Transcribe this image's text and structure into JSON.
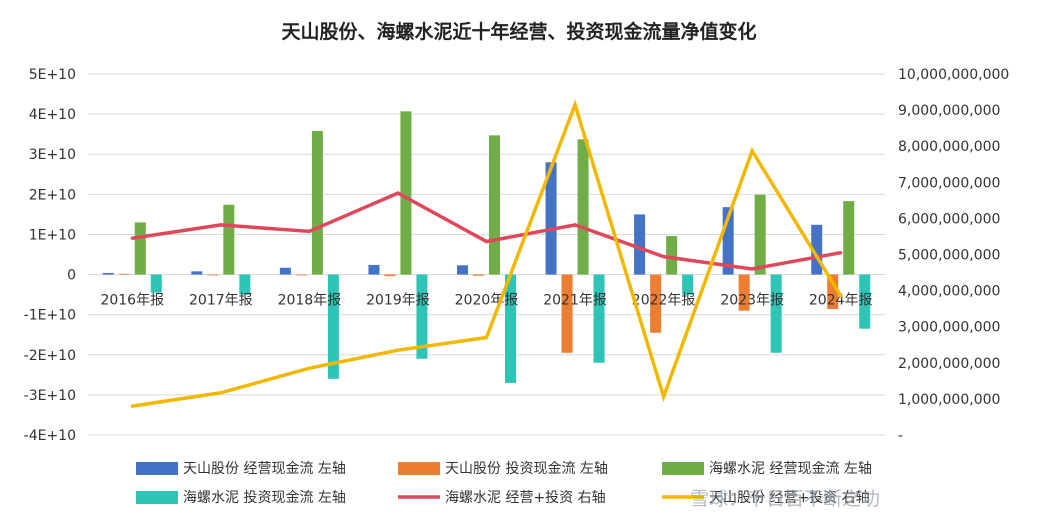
{
  "watermark": "雪球：千日百不断之功",
  "chart_data": {
    "type": "bar",
    "title": "天山股份、海螺水泥近十年经营、投资现金流量净值变化",
    "categories": [
      "2016年报",
      "2017年报",
      "2018年报",
      "2019年报",
      "2020年报",
      "2021年报",
      "2022年报",
      "2023年报",
      "2024年报"
    ],
    "left_axis": {
      "min": -40000000000,
      "max": 50000000000,
      "step": 10000000000,
      "tick_labels": [
        "-4E+10",
        "-3E+10",
        "-2E+10",
        "-1E+10",
        "0",
        "1E+10",
        "2E+10",
        "3E+10",
        "4E+10",
        "5E+10"
      ]
    },
    "right_axis": {
      "min": 0,
      "max": 10000000000,
      "step": 1000000000,
      "tick_labels": [
        "-",
        "1,000,000,000",
        "2,000,000,000",
        "3,000,000,000",
        "4,000,000,000",
        "5,000,000,000",
        "6,000,000,000",
        "7,000,000,000",
        "8,000,000,000",
        "9,000,000,000",
        "10,000,000,000"
      ]
    },
    "grid": true,
    "legend_position": "bottom",
    "series": [
      {
        "name": "天山股份 经营现金流 左轴",
        "kind": "bar",
        "axis": "left",
        "color": "#4472c4",
        "values": [
          400000000,
          800000000,
          1700000000,
          2400000000,
          2300000000,
          28000000000,
          15000000000,
          16800000000,
          12400000000
        ]
      },
      {
        "name": "天山股份 投资现金流 左轴",
        "kind": "bar",
        "axis": "left",
        "color": "#ed7d31",
        "values": [
          200000000,
          -100000000,
          -200000000,
          -400000000,
          -300000000,
          -19500000000,
          -14500000000,
          -9000000000,
          -8600000000
        ]
      },
      {
        "name": "海螺水泥 经营现金流 左轴",
        "kind": "bar",
        "axis": "left",
        "color": "#70ad47",
        "values": [
          13000000000,
          17400000000,
          35800000000,
          40700000000,
          34700000000,
          33700000000,
          9600000000,
          19900000000,
          18300000000
        ]
      },
      {
        "name": "海螺水泥 投资现金流 左轴",
        "kind": "bar",
        "axis": "left",
        "color": "#2ec4b6",
        "values": [
          -4500000000,
          -5000000000,
          -26000000000,
          -21000000000,
          -27000000000,
          -22000000000,
          -5000000000,
          -19500000000,
          -13500000000
        ]
      },
      {
        "name": "海螺水泥 经营+投资 右轴",
        "kind": "line",
        "axis": "right",
        "color": "#e0475b",
        "values": [
          5450000000,
          5820000000,
          5640000000,
          6700000000,
          5360000000,
          5820000000,
          4940000000,
          4600000000,
          5050000000
        ]
      },
      {
        "name": "天山股份 经营+投资 右轴",
        "kind": "line",
        "axis": "right",
        "color": "#f2b800",
        "values": [
          800000000,
          1170000000,
          1850000000,
          2350000000,
          2700000000,
          9150000000,
          1060000000,
          7870000000,
          3860000000
        ]
      }
    ]
  }
}
